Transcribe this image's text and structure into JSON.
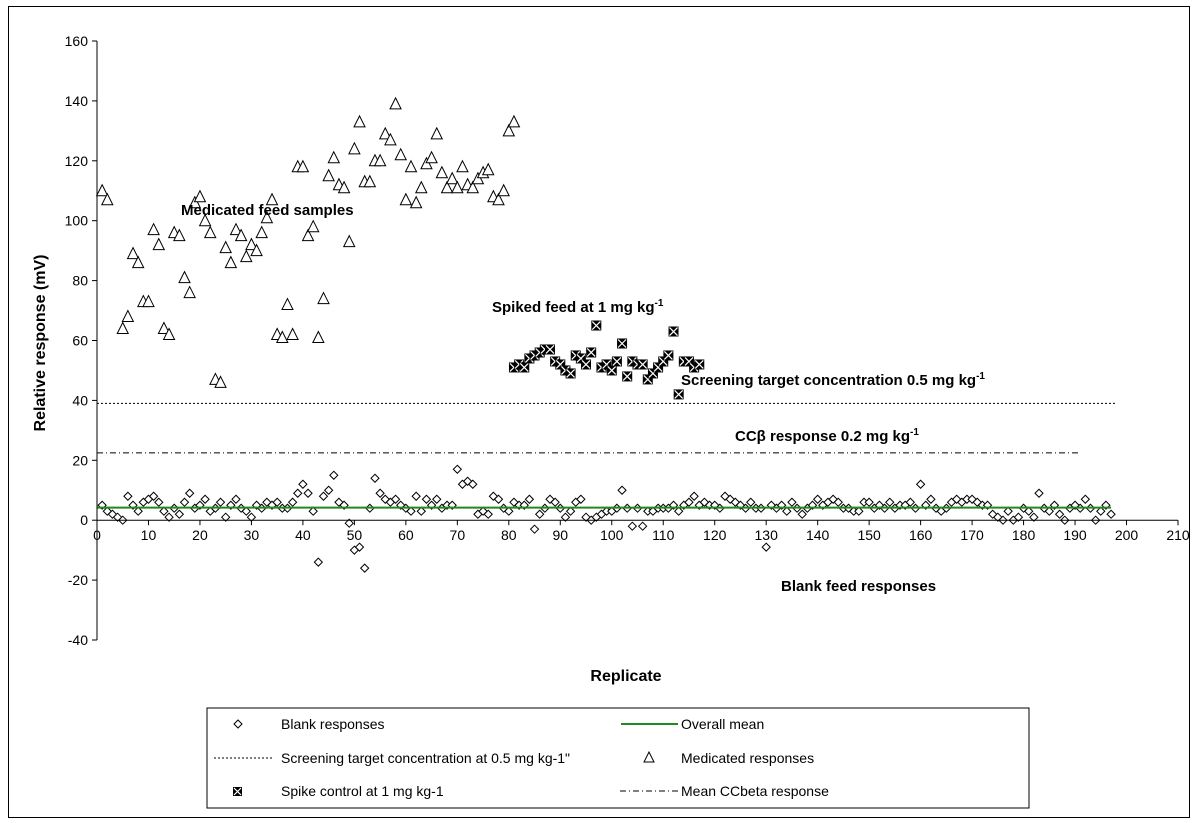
{
  "chart_data": {
    "type": "scatter",
    "xlabel": "Replicate",
    "ylabel": "Relative response (mV)",
    "xlim": [
      0,
      210
    ],
    "ylim": [
      -40,
      160
    ],
    "x_ticks": [
      0,
      10,
      20,
      30,
      40,
      50,
      60,
      70,
      80,
      90,
      100,
      110,
      120,
      130,
      140,
      150,
      160,
      170,
      180,
      190,
      200,
      210
    ],
    "y_ticks": [
      -40,
      -20,
      0,
      20,
      40,
      60,
      80,
      100,
      120,
      140,
      160
    ],
    "grid": false,
    "legend_position": "bottom",
    "annotations": {
      "medicated": "Medicated feed samples",
      "spiked_main": "Spiked feed at 1 mg kg",
      "spiked_sup": "-1",
      "target_main": "Screening target concentration 0.5 mg kg",
      "target_sup": "-1",
      "ccb_main": "CCβ response 0.2 mg kg",
      "ccb_sup": "-1",
      "blank": "Blank feed responses"
    },
    "legend": [
      {
        "label": "Blank responses",
        "marker": "diamond"
      },
      {
        "label": "Overall mean",
        "marker": "green-line"
      },
      {
        "label": "Screening target concentration at 0.5 mg kg-1\"",
        "marker": "dotted-line"
      },
      {
        "label": "Medicated responses",
        "marker": "triangle"
      },
      {
        "label": "Spike control at 1 mg kg-1",
        "marker": "x-square"
      },
      {
        "label": "Mean CCbeta response",
        "marker": "dashdot-line"
      }
    ],
    "lines": {
      "overall_mean": {
        "y": 4.2,
        "x_range": [
          0,
          197
        ],
        "color": "#1f8a1f"
      },
      "screening_target": {
        "y": 39,
        "x_range": [
          0,
          198
        ]
      },
      "ccbeta": {
        "y": 22.5,
        "x_range": [
          0,
          191
        ]
      }
    },
    "series": [
      {
        "name": "Blank responses",
        "marker": "diamond",
        "points": [
          [
            1,
            5
          ],
          [
            2,
            3
          ],
          [
            3,
            2
          ],
          [
            4,
            1
          ],
          [
            5,
            0
          ],
          [
            6,
            8
          ],
          [
            7,
            5
          ],
          [
            8,
            3
          ],
          [
            9,
            6
          ],
          [
            10,
            7
          ],
          [
            11,
            8
          ],
          [
            12,
            6
          ],
          [
            13,
            3
          ],
          [
            14,
            1
          ],
          [
            15,
            4
          ],
          [
            16,
            2
          ],
          [
            17,
            6
          ],
          [
            18,
            9
          ],
          [
            19,
            4
          ],
          [
            20,
            5
          ],
          [
            21,
            7
          ],
          [
            22,
            3
          ],
          [
            23,
            4
          ],
          [
            24,
            6
          ],
          [
            25,
            1
          ],
          [
            26,
            5
          ],
          [
            27,
            7
          ],
          [
            28,
            4
          ],
          [
            29,
            3
          ],
          [
            30,
            1
          ],
          [
            31,
            5
          ],
          [
            32,
            4
          ],
          [
            33,
            6
          ],
          [
            34,
            5
          ],
          [
            35,
            6
          ],
          [
            36,
            4
          ],
          [
            37,
            4
          ],
          [
            38,
            6
          ],
          [
            39,
            9
          ],
          [
            40,
            12
          ],
          [
            41,
            9
          ],
          [
            42,
            3
          ],
          [
            43,
            -14
          ],
          [
            44,
            8
          ],
          [
            45,
            10
          ],
          [
            46,
            15
          ],
          [
            47,
            6
          ],
          [
            48,
            5
          ],
          [
            49,
            -1
          ],
          [
            50,
            -10
          ],
          [
            51,
            -9
          ],
          [
            52,
            -16
          ],
          [
            53,
            4
          ],
          [
            54,
            14
          ],
          [
            55,
            9
          ],
          [
            56,
            7
          ],
          [
            57,
            6
          ],
          [
            58,
            7
          ],
          [
            59,
            5
          ],
          [
            60,
            4
          ],
          [
            61,
            3
          ],
          [
            62,
            8
          ],
          [
            63,
            3
          ],
          [
            64,
            7
          ],
          [
            65,
            5
          ],
          [
            66,
            7
          ],
          [
            67,
            4
          ],
          [
            68,
            5
          ],
          [
            69,
            5
          ],
          [
            70,
            17
          ],
          [
            71,
            12
          ],
          [
            72,
            13
          ],
          [
            73,
            12
          ],
          [
            74,
            2
          ],
          [
            75,
            3
          ],
          [
            76,
            2
          ],
          [
            77,
            8
          ],
          [
            78,
            7
          ],
          [
            79,
            4
          ],
          [
            80,
            3
          ],
          [
            81,
            6
          ],
          [
            82,
            5
          ],
          [
            83,
            5
          ],
          [
            84,
            7
          ],
          [
            85,
            -3
          ],
          [
            86,
            2
          ],
          [
            87,
            4
          ],
          [
            88,
            7
          ],
          [
            89,
            6
          ],
          [
            90,
            4
          ],
          [
            91,
            1
          ],
          [
            92,
            3
          ],
          [
            93,
            6
          ],
          [
            94,
            7
          ],
          [
            95,
            1
          ],
          [
            96,
            0
          ],
          [
            97,
            1
          ],
          [
            98,
            2
          ],
          [
            99,
            3
          ],
          [
            100,
            3
          ],
          [
            101,
            4
          ],
          [
            102,
            10
          ],
          [
            103,
            4
          ],
          [
            104,
            -2
          ],
          [
            105,
            4
          ],
          [
            106,
            -2
          ],
          [
            107,
            3
          ],
          [
            108,
            3
          ],
          [
            109,
            4
          ],
          [
            110,
            4
          ],
          [
            111,
            4
          ],
          [
            112,
            5
          ],
          [
            113,
            3
          ],
          [
            114,
            5
          ],
          [
            115,
            6
          ],
          [
            116,
            8
          ],
          [
            117,
            5
          ],
          [
            118,
            6
          ],
          [
            119,
            5
          ],
          [
            120,
            5
          ],
          [
            121,
            4
          ],
          [
            122,
            8
          ],
          [
            123,
            7
          ],
          [
            124,
            6
          ],
          [
            125,
            5
          ],
          [
            126,
            4
          ],
          [
            127,
            6
          ],
          [
            128,
            4
          ],
          [
            129,
            4
          ],
          [
            130,
            -9
          ],
          [
            131,
            5
          ],
          [
            132,
            4
          ],
          [
            133,
            5
          ],
          [
            134,
            3
          ],
          [
            135,
            6
          ],
          [
            136,
            4
          ],
          [
            137,
            2
          ],
          [
            138,
            4
          ],
          [
            139,
            5
          ],
          [
            140,
            7
          ],
          [
            141,
            5
          ],
          [
            142,
            6
          ],
          [
            143,
            7
          ],
          [
            144,
            6
          ],
          [
            145,
            4
          ],
          [
            146,
            4
          ],
          [
            147,
            3
          ],
          [
            148,
            3
          ],
          [
            149,
            6
          ],
          [
            150,
            6
          ],
          [
            151,
            4
          ],
          [
            152,
            5
          ],
          [
            153,
            4
          ],
          [
            154,
            6
          ],
          [
            155,
            4
          ],
          [
            156,
            5
          ],
          [
            157,
            5
          ],
          [
            158,
            6
          ],
          [
            159,
            4
          ],
          [
            160,
            12
          ],
          [
            161,
            5
          ],
          [
            162,
            7
          ],
          [
            163,
            4
          ],
          [
            164,
            3
          ],
          [
            165,
            4
          ],
          [
            166,
            6
          ],
          [
            167,
            7
          ],
          [
            168,
            6
          ],
          [
            169,
            7
          ],
          [
            170,
            7
          ],
          [
            171,
            6
          ],
          [
            172,
            5
          ],
          [
            173,
            5
          ],
          [
            174,
            2
          ],
          [
            175,
            1
          ],
          [
            176,
            0
          ],
          [
            177,
            3
          ],
          [
            178,
            0
          ],
          [
            179,
            1
          ],
          [
            180,
            4
          ],
          [
            181,
            3
          ],
          [
            182,
            1
          ],
          [
            183,
            9
          ],
          [
            184,
            4
          ],
          [
            185,
            3
          ],
          [
            186,
            5
          ],
          [
            187,
            2
          ],
          [
            188,
            0
          ],
          [
            189,
            4
          ],
          [
            190,
            5
          ],
          [
            191,
            4
          ],
          [
            192,
            7
          ],
          [
            193,
            4
          ],
          [
            194,
            0
          ],
          [
            195,
            3
          ],
          [
            196,
            5
          ],
          [
            197,
            2
          ]
        ]
      },
      {
        "name": "Medicated responses",
        "marker": "triangle",
        "points": [
          [
            1,
            110
          ],
          [
            2,
            107
          ],
          [
            5,
            64
          ],
          [
            6,
            68
          ],
          [
            7,
            89
          ],
          [
            8,
            86
          ],
          [
            9,
            73
          ],
          [
            10,
            73
          ],
          [
            11,
            97
          ],
          [
            12,
            92
          ],
          [
            13,
            64
          ],
          [
            14,
            62
          ],
          [
            15,
            96
          ],
          [
            16,
            95
          ],
          [
            17,
            81
          ],
          [
            18,
            76
          ],
          [
            19,
            106
          ],
          [
            20,
            108
          ],
          [
            21,
            100
          ],
          [
            22,
            96
          ],
          [
            23,
            47
          ],
          [
            24,
            46
          ],
          [
            25,
            91
          ],
          [
            26,
            86
          ],
          [
            27,
            97
          ],
          [
            28,
            95
          ],
          [
            29,
            88
          ],
          [
            30,
            92
          ],
          [
            31,
            90
          ],
          [
            32,
            96
          ],
          [
            33,
            101
          ],
          [
            34,
            107
          ],
          [
            35,
            62
          ],
          [
            36,
            61
          ],
          [
            37,
            72
          ],
          [
            38,
            62
          ],
          [
            39,
            118
          ],
          [
            40,
            118
          ],
          [
            41,
            95
          ],
          [
            42,
            98
          ],
          [
            43,
            61
          ],
          [
            44,
            74
          ],
          [
            45,
            115
          ],
          [
            46,
            121
          ],
          [
            47,
            112
          ],
          [
            48,
            111
          ],
          [
            49,
            93
          ],
          [
            50,
            124
          ],
          [
            51,
            133
          ],
          [
            52,
            113
          ],
          [
            53,
            113
          ],
          [
            54,
            120
          ],
          [
            55,
            120
          ],
          [
            56,
            129
          ],
          [
            57,
            127
          ],
          [
            58,
            139
          ],
          [
            59,
            122
          ],
          [
            60,
            107
          ],
          [
            61,
            118
          ],
          [
            62,
            106
          ],
          [
            63,
            111
          ],
          [
            64,
            119
          ],
          [
            65,
            121
          ],
          [
            66,
            129
          ],
          [
            67,
            116
          ],
          [
            68,
            111
          ],
          [
            69,
            114
          ],
          [
            70,
            111
          ],
          [
            71,
            118
          ],
          [
            72,
            112
          ],
          [
            73,
            111
          ],
          [
            74,
            114
          ],
          [
            75,
            116
          ],
          [
            76,
            117
          ],
          [
            77,
            108
          ],
          [
            78,
            107
          ],
          [
            79,
            110
          ],
          [
            80,
            130
          ],
          [
            81,
            133
          ]
        ]
      },
      {
        "name": "Spike control at 1 mg kg-1",
        "marker": "x-square",
        "points": [
          [
            81,
            51
          ],
          [
            82,
            52
          ],
          [
            83,
            51
          ],
          [
            84,
            54
          ],
          [
            85,
            55
          ],
          [
            86,
            56
          ],
          [
            87,
            57
          ],
          [
            88,
            57
          ],
          [
            89,
            53
          ],
          [
            90,
            52
          ],
          [
            91,
            50
          ],
          [
            92,
            49
          ],
          [
            93,
            55
          ],
          [
            94,
            54
          ],
          [
            95,
            52
          ],
          [
            96,
            56
          ],
          [
            97,
            65
          ],
          [
            98,
            51
          ],
          [
            99,
            52
          ],
          [
            100,
            50
          ],
          [
            101,
            53
          ],
          [
            102,
            59
          ],
          [
            103,
            48
          ],
          [
            104,
            53
          ],
          [
            105,
            52
          ],
          [
            106,
            52
          ],
          [
            107,
            47
          ],
          [
            108,
            49
          ],
          [
            109,
            51
          ],
          [
            110,
            53
          ],
          [
            111,
            55
          ],
          [
            112,
            63
          ],
          [
            113,
            42
          ],
          [
            114,
            53
          ],
          [
            115,
            53
          ],
          [
            116,
            51
          ],
          [
            117,
            52
          ]
        ]
      }
    ]
  }
}
